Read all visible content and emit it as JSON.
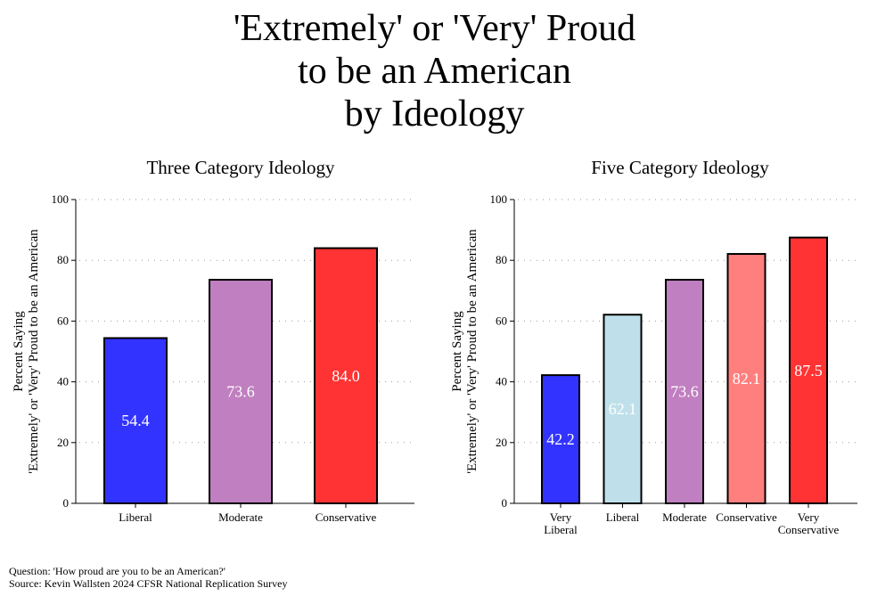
{
  "title_lines": [
    "'Extremely' or 'Very' Proud",
    "to be an American",
    "by Ideology"
  ],
  "notes": {
    "question": "Question: 'How proud are you to be an American?'",
    "source": "Source: Kevin Wallsten 2024 CFSR National Replication Survey"
  },
  "chart_data": [
    {
      "type": "bar",
      "title": "Three Category Ideology",
      "ylabel_lines": [
        "Percent Saying",
        "'Extremely' or 'Very' Proud to be an American"
      ],
      "ylim": [
        0,
        100
      ],
      "yticks": [
        0,
        20,
        40,
        60,
        80,
        100
      ],
      "grid": true,
      "categories": [
        [
          "Liberal"
        ],
        [
          "Moderate"
        ],
        [
          "Conservative"
        ]
      ],
      "values": [
        54.4,
        73.6,
        84.0
      ],
      "value_labels": [
        "54.4",
        "73.6",
        "84.0"
      ],
      "colors": [
        "#3333ff",
        "#c07fc0",
        "#ff3333"
      ]
    },
    {
      "type": "bar",
      "title": "Five Category Ideology",
      "ylabel_lines": [
        "Percent Saying",
        "'Extremely' or 'Very' Proud to be an American"
      ],
      "ylim": [
        0,
        100
      ],
      "yticks": [
        0,
        20,
        40,
        60,
        80,
        100
      ],
      "grid": true,
      "categories": [
        [
          "Very",
          "Liberal"
        ],
        [
          "Liberal"
        ],
        [
          "Moderate"
        ],
        [
          "Conservative"
        ],
        [
          "Very",
          "Conservative"
        ]
      ],
      "values": [
        42.2,
        62.1,
        73.6,
        82.1,
        87.5
      ],
      "value_labels": [
        "42.2",
        "62.1",
        "73.6",
        "82.1",
        "87.5"
      ],
      "colors": [
        "#3333ff",
        "#bfe0ea",
        "#c07fc0",
        "#ff7f7f",
        "#ff3333"
      ]
    }
  ]
}
